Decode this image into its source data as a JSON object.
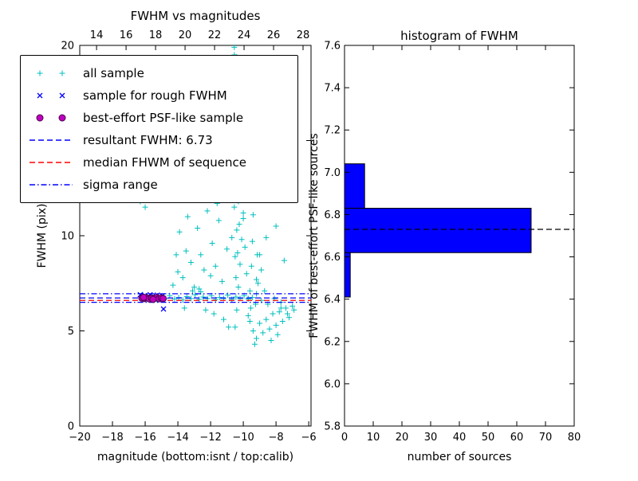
{
  "chart_data": [
    {
      "id": "scatter",
      "type": "scatter",
      "title": "FWHM vs magnitudes",
      "xlabel": "magnitude (bottom:isnt / top:calib)",
      "ylabel": "FWHM (pix)",
      "xlim_bottom": [
        -20,
        -5.86
      ],
      "xlim_top": [
        12.86,
        28.54
      ],
      "ylim": [
        0,
        20
      ],
      "bottom_ticks": [
        {
          "v": -20,
          "t": "−20"
        },
        {
          "v": -18,
          "t": "−18"
        },
        {
          "v": -16,
          "t": "−16"
        },
        {
          "v": -14,
          "t": "−14"
        },
        {
          "v": -12,
          "t": "−12"
        },
        {
          "v": -10,
          "t": "−10"
        },
        {
          "v": -8,
          "t": "−8"
        },
        {
          "v": -6,
          "t": "−6"
        }
      ],
      "top_ticks": [
        {
          "v": 14,
          "t": "14"
        },
        {
          "v": 16,
          "t": "16"
        },
        {
          "v": 18,
          "t": "18"
        },
        {
          "v": 20,
          "t": "20"
        },
        {
          "v": 22,
          "t": "22"
        },
        {
          "v": 24,
          "t": "24"
        },
        {
          "v": 26,
          "t": "26"
        },
        {
          "v": 28,
          "t": "28"
        }
      ],
      "y_ticks": [
        {
          "v": 0,
          "t": "0"
        },
        {
          "v": 5,
          "t": "5"
        },
        {
          "v": 10,
          "t": "10"
        },
        {
          "v": 15,
          "t": "15"
        },
        {
          "v": 20,
          "t": "20"
        }
      ],
      "series": [
        {
          "name": "all sample",
          "marker": "plus",
          "color": "#00bfbf",
          "points": [
            [
              -16.15,
              6.9
            ],
            [
              -15.9,
              6.72
            ],
            [
              -15.6,
              6.8
            ],
            [
              -15.3,
              6.65
            ],
            [
              -15.05,
              6.78
            ],
            [
              -14.75,
              6.7
            ],
            [
              -14.5,
              6.85
            ],
            [
              -14.2,
              6.68
            ],
            [
              -13.95,
              6.75
            ],
            [
              -13.7,
              6.62
            ],
            [
              -13.45,
              6.8
            ],
            [
              -13.2,
              6.7
            ],
            [
              -12.95,
              6.9
            ],
            [
              -12.7,
              6.66
            ],
            [
              -12.45,
              6.78
            ],
            [
              -12.2,
              6.7
            ],
            [
              -11.95,
              6.85
            ],
            [
              -11.7,
              6.64
            ],
            [
              -11.45,
              6.75
            ],
            [
              -11.2,
              6.7
            ],
            [
              -10.95,
              6.88
            ],
            [
              -10.7,
              6.66
            ],
            [
              -10.45,
              6.78
            ],
            [
              -10.2,
              6.7
            ],
            [
              -9.95,
              6.85
            ],
            [
              -9.7,
              6.68
            ],
            [
              -9.45,
              6.75
            ],
            [
              -9.2,
              6.95
            ],
            [
              -12.6,
              7.05
            ],
            [
              -13.1,
              7.1
            ],
            [
              -16.55,
              12.1
            ],
            [
              -16.4,
              12.9
            ],
            [
              -16.3,
              11.8
            ],
            [
              -16.2,
              13.3
            ],
            [
              -16.1,
              12.4
            ],
            [
              -16.0,
              11.5
            ],
            [
              -15.9,
              13.0
            ],
            [
              -15.75,
              12.2
            ],
            [
              -15.6,
              13.6
            ],
            [
              -15.45,
              11.9
            ],
            [
              -15.3,
              12.6
            ],
            [
              -14.3,
              7.4
            ],
            [
              -14.0,
              8.1
            ],
            [
              -13.7,
              7.8
            ],
            [
              -13.5,
              9.2
            ],
            [
              -13.2,
              8.6
            ],
            [
              -13.0,
              7.3
            ],
            [
              -12.8,
              10.4
            ],
            [
              -12.6,
              9.0
            ],
            [
              -12.4,
              8.2
            ],
            [
              -12.2,
              11.3
            ],
            [
              -12.0,
              7.9
            ],
            [
              -11.9,
              9.6
            ],
            [
              -11.7,
              8.4
            ],
            [
              -11.5,
              10.8
            ],
            [
              -11.3,
              7.6
            ],
            [
              -11.2,
              12.1
            ],
            [
              -11.0,
              9.3
            ],
            [
              -12.9,
              12.6
            ],
            [
              -13.4,
              11.0
            ],
            [
              -12.1,
              12.9
            ],
            [
              -11.6,
              11.7
            ],
            [
              -13.9,
              10.2
            ],
            [
              -14.1,
              9.0
            ],
            [
              -11.4,
              13.2
            ],
            [
              -12.7,
              7.2
            ],
            [
              -10.5,
              5.2
            ],
            [
              -10.4,
              6.1
            ],
            [
              -10.3,
              7.3
            ],
            [
              -10.2,
              8.5
            ],
            [
              -10.1,
              9.8
            ],
            [
              -10.0,
              11.2
            ],
            [
              -9.9,
              12.6
            ],
            [
              -9.8,
              14.1
            ],
            [
              -9.7,
              15.6
            ],
            [
              -9.6,
              17.2
            ],
            [
              -10.5,
              18.3
            ],
            [
              -10.4,
              16.9
            ],
            [
              -10.3,
              15.4
            ],
            [
              -10.2,
              13.9
            ],
            [
              -10.1,
              12.5
            ],
            [
              -10.0,
              10.9
            ],
            [
              -9.9,
              9.4
            ],
            [
              -9.8,
              8.0
            ],
            [
              -9.7,
              6.7
            ],
            [
              -9.6,
              5.5
            ],
            [
              -10.45,
              7.8
            ],
            [
              -10.35,
              9.1
            ],
            [
              -10.25,
              10.6
            ],
            [
              -10.15,
              12.0
            ],
            [
              -10.05,
              13.5
            ],
            [
              -9.95,
              15.0
            ],
            [
              -9.85,
              16.5
            ],
            [
              -9.75,
              18.0
            ],
            [
              -9.65,
              19.2
            ],
            [
              -9.55,
              6.2
            ],
            [
              -10.5,
              8.9
            ],
            [
              -10.4,
              10.3
            ],
            [
              -10.3,
              11.8
            ],
            [
              -10.2,
              13.2
            ],
            [
              -10.1,
              14.8
            ],
            [
              -10.0,
              16.2
            ],
            [
              -9.9,
              17.8
            ],
            [
              -9.8,
              19.0
            ],
            [
              -9.7,
              5.8
            ],
            [
              -9.6,
              7.1
            ],
            [
              -9.5,
              8.4
            ],
            [
              -9.45,
              9.7
            ],
            [
              -9.4,
              11.1
            ],
            [
              -9.35,
              12.4
            ],
            [
              -9.3,
              13.8
            ],
            [
              -9.5,
              15.3
            ],
            [
              -9.4,
              16.8
            ],
            [
              -9.3,
              18.2
            ],
            [
              -10.55,
              11.5
            ],
            [
              -10.6,
              13.0
            ],
            [
              -10.65,
              14.5
            ],
            [
              -10.7,
              16.0
            ],
            [
              -10.6,
              17.5
            ],
            [
              -10.55,
              19.5
            ],
            [
              -9.25,
              6.4
            ],
            [
              -9.2,
              7.7
            ],
            [
              -9.15,
              9.0
            ],
            [
              -10.7,
              9.9
            ],
            [
              -10.75,
              12.8
            ],
            [
              -10.8,
              15.8
            ],
            [
              -12.5,
              18.3
            ],
            [
              -10.55,
              19.9
            ],
            [
              -10.4,
              19.4
            ],
            [
              -9.4,
              5.0
            ],
            [
              -9.2,
              4.6
            ],
            [
              -9.0,
              5.4
            ],
            [
              -8.8,
              4.9
            ],
            [
              -8.6,
              5.6
            ],
            [
              -8.4,
              5.1
            ],
            [
              -8.2,
              5.9
            ],
            [
              -8.0,
              5.3
            ],
            [
              -7.8,
              6.0
            ],
            [
              -7.6,
              5.5
            ],
            [
              -7.4,
              6.2
            ],
            [
              -7.2,
              5.7
            ],
            [
              -7.0,
              6.3
            ],
            [
              -8.9,
              6.6
            ],
            [
              -8.5,
              6.4
            ],
            [
              -8.1,
              6.7
            ],
            [
              -7.7,
              6.5
            ],
            [
              -9.3,
              4.3
            ],
            [
              -8.3,
              4.5
            ],
            [
              -7.9,
              4.8
            ],
            [
              -11.8,
              5.9
            ],
            [
              -11.2,
              5.6
            ],
            [
              -10.9,
              5.2
            ],
            [
              -12.3,
              6.1
            ],
            [
              -13.6,
              6.2
            ],
            [
              -8.6,
              9.9
            ],
            [
              -8.0,
              10.5
            ],
            [
              -7.5,
              8.7
            ],
            [
              -7.7,
              6.2
            ],
            [
              -7.3,
              5.9
            ],
            [
              -6.9,
              6.1
            ],
            [
              -9.1,
              7.5
            ],
            [
              -8.9,
              8.2
            ],
            [
              -8.7,
              7.1
            ],
            [
              -9.0,
              9.0
            ]
          ]
        },
        {
          "name": "sample for rough FWHM",
          "marker": "x",
          "color": "#0000ff",
          "points": [
            [
              -16.3,
              6.9
            ],
            [
              -16.15,
              6.78
            ],
            [
              -16.0,
              6.85
            ],
            [
              -15.85,
              6.72
            ],
            [
              -15.7,
              6.9
            ],
            [
              -15.55,
              6.8
            ],
            [
              -15.4,
              6.74
            ],
            [
              -15.25,
              6.88
            ],
            [
              -15.1,
              6.78
            ],
            [
              -14.95,
              6.84
            ],
            [
              -14.88,
              6.15
            ]
          ]
        },
        {
          "name": "best-effort PSF-like sample",
          "marker": "circle",
          "color": "#bf00bf",
          "edge": "#4a004a",
          "points": [
            [
              -16.2,
              6.72
            ],
            [
              -16.05,
              6.7
            ],
            [
              -15.9,
              6.74
            ],
            [
              -15.75,
              6.68
            ],
            [
              -15.6,
              6.72
            ],
            [
              -15.45,
              6.7
            ],
            [
              -15.3,
              6.75
            ],
            [
              -15.15,
              6.69
            ],
            [
              -15.0,
              6.73
            ],
            [
              -14.9,
              6.7
            ],
            [
              -15.52,
              6.66
            ],
            [
              -16.1,
              6.76
            ]
          ]
        }
      ],
      "hlines": [
        {
          "id": "resultant-fwhm-line",
          "label": "resultant FWHM: 6.73",
          "y": 6.73,
          "color": "#0000ff",
          "dash": "7,4"
        },
        {
          "id": "median-fwhm-line",
          "label": "median FHWM of sequence",
          "y": 6.6,
          "color": "#ff0000",
          "dash": "7,4"
        },
        {
          "id": "sigma-low-line",
          "label": "sigma range",
          "y": 6.5,
          "color": "#0000ff",
          "dash": "7,3,1.5,3"
        },
        {
          "id": "sigma-high-line",
          "label": "sigma range",
          "y": 6.95,
          "color": "#0000ff",
          "dash": "7,3,1.5,3"
        }
      ],
      "legend": {
        "items": [
          {
            "label": "all sample",
            "marker": "plus",
            "color": "#00bfbf"
          },
          {
            "label": "sample for rough FWHM",
            "marker": "x",
            "color": "#0000ff"
          },
          {
            "label": "best-effort PSF-like sample",
            "marker": "circle",
            "color": "#bf00bf",
            "edge": "#4a004a"
          },
          {
            "label": "resultant FWHM: 6.73",
            "marker": "dashed",
            "color": "#0000ff"
          },
          {
            "label": "median FHWM of sequence",
            "marker": "dashed",
            "color": "#ff0000"
          },
          {
            "label": "sigma range",
            "marker": "dashdot",
            "color": "#0000ff"
          }
        ]
      }
    },
    {
      "id": "hist",
      "type": "barh",
      "title": "histogram of FWHM",
      "xlabel": "number of sources",
      "ylabel": "FWHM of best-effort PSF-like sources",
      "xlim": [
        0,
        80
      ],
      "ylim": [
        5.8,
        7.6
      ],
      "x_ticks": [
        {
          "v": 0,
          "t": "0"
        },
        {
          "v": 10,
          "t": "10"
        },
        {
          "v": 20,
          "t": "20"
        },
        {
          "v": 30,
          "t": "30"
        },
        {
          "v": 40,
          "t": "40"
        },
        {
          "v": 50,
          "t": "50"
        },
        {
          "v": 60,
          "t": "60"
        },
        {
          "v": 70,
          "t": "70"
        },
        {
          "v": 80,
          "t": "80"
        }
      ],
      "y_ticks": [
        {
          "v": 5.8,
          "t": "5.8"
        },
        {
          "v": 6.0,
          "t": "6.0"
        },
        {
          "v": 6.2,
          "t": "6.2"
        },
        {
          "v": 6.4,
          "t": "6.4"
        },
        {
          "v": 6.6,
          "t": "6.6"
        },
        {
          "v": 6.8,
          "t": "6.8"
        },
        {
          "v": 7.0,
          "t": "7.0"
        },
        {
          "v": 7.2,
          "t": "7.2"
        },
        {
          "v": 7.4,
          "t": "7.4"
        },
        {
          "v": 7.6,
          "t": "7.6"
        }
      ],
      "bins": [
        {
          "from": 6.41,
          "to": 6.62,
          "count": 2
        },
        {
          "from": 6.62,
          "to": 6.83,
          "count": 65
        },
        {
          "from": 6.83,
          "to": 7.04,
          "count": 7
        }
      ],
      "bar_color": "#0000ff",
      "bar_edge": "#000000",
      "dashed_line": {
        "y": 6.73,
        "color": "#000000",
        "dash": "7,4"
      }
    }
  ]
}
